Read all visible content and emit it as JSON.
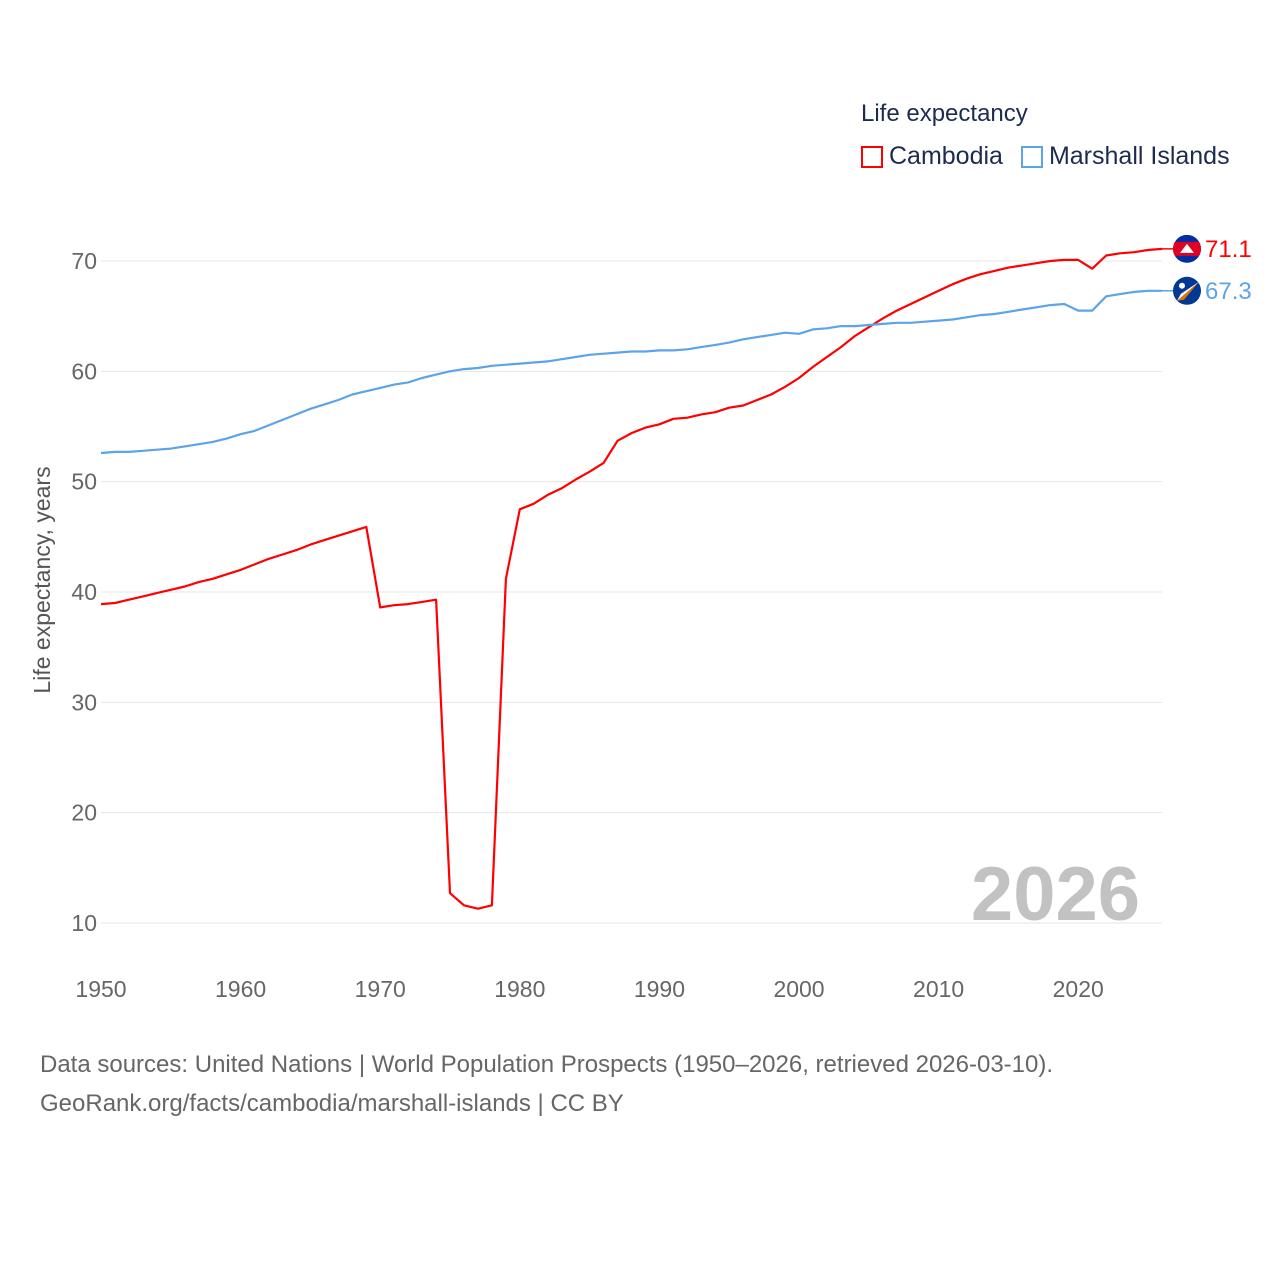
{
  "legend": {
    "title": "Life expectancy"
  },
  "year_label": "2026",
  "source": {
    "line1": "Data sources: United Nations | World Population Prospects (1950–2026, retrieved 2026-03-10).",
    "line2": "GeoRank.org/facts/cambodia/marshall-islands | CC BY"
  },
  "chart_data": {
    "type": "line",
    "title": "Life expectancy",
    "xlabel": "",
    "ylabel": "Life expectancy, years",
    "xlim": [
      1950,
      2026
    ],
    "ylim": [
      10,
      70
    ],
    "x_ticks": [
      1950,
      1960,
      1970,
      1980,
      1990,
      2000,
      2010,
      2020
    ],
    "y_ticks": [
      10,
      20,
      30,
      40,
      50,
      60,
      70
    ],
    "grid": true,
    "legend_position": "top-right",
    "x_start": 1950,
    "series": [
      {
        "name": "Cambodia",
        "color": "#ff0000",
        "end_label": "71.1",
        "flag": "cambodia-flag",
        "values": [
          38.9,
          39.0,
          39.3,
          39.6,
          39.9,
          40.2,
          40.5,
          40.9,
          41.2,
          41.6,
          42.0,
          42.5,
          43.0,
          43.4,
          43.8,
          44.3,
          44.7,
          45.1,
          45.5,
          45.9,
          38.6,
          38.8,
          38.9,
          39.1,
          39.3,
          12.7,
          11.6,
          11.3,
          11.6,
          41.2,
          47.5,
          48.0,
          48.8,
          49.4,
          50.2,
          50.9,
          51.7,
          53.7,
          54.4,
          54.9,
          55.2,
          55.7,
          55.8,
          56.1,
          56.3,
          56.7,
          56.9,
          57.4,
          57.9,
          58.6,
          59.4,
          60.4,
          61.3,
          62.2,
          63.2,
          64.0,
          64.8,
          65.5,
          66.1,
          66.7,
          67.3,
          67.9,
          68.4,
          68.8,
          69.1,
          69.4,
          69.6,
          69.8,
          70.0,
          70.1,
          70.1,
          69.3,
          70.5,
          70.7,
          70.8,
          71.0,
          71.1
        ]
      },
      {
        "name": "Marshall Islands",
        "color": "#5ba4e8",
        "end_label": "67.3",
        "flag": "marshall-islands-flag",
        "values": [
          52.6,
          52.7,
          52.7,
          52.8,
          52.9,
          53.0,
          53.2,
          53.4,
          53.6,
          53.9,
          54.3,
          54.6,
          55.1,
          55.6,
          56.1,
          56.6,
          57.0,
          57.4,
          57.9,
          58.2,
          58.5,
          58.8,
          59.0,
          59.4,
          59.7,
          60.0,
          60.2,
          60.3,
          60.5,
          60.6,
          60.7,
          60.8,
          60.9,
          61.1,
          61.3,
          61.5,
          61.6,
          61.7,
          61.8,
          61.8,
          61.9,
          61.9,
          62.0,
          62.2,
          62.4,
          62.6,
          62.9,
          63.1,
          63.3,
          63.5,
          63.4,
          63.8,
          63.9,
          64.1,
          64.1,
          64.2,
          64.3,
          64.4,
          64.4,
          64.5,
          64.6,
          64.7,
          64.9,
          65.1,
          65.2,
          65.4,
          65.6,
          65.8,
          66.0,
          66.1,
          65.5,
          65.5,
          66.8,
          67.0,
          67.2,
          67.3,
          67.3
        ]
      }
    ]
  }
}
